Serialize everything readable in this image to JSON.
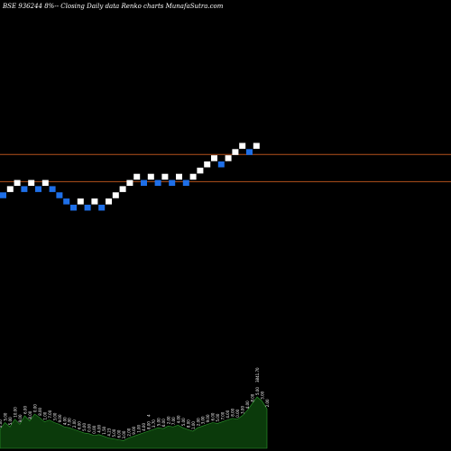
{
  "chart_data": {
    "type": "renko",
    "title": "BSE 936244  8%-- Closing Daily data  Renko  charts MunafaSutra.com",
    "colors": {
      "background": "#000000",
      "up_brick": "#ffffff",
      "down_brick": "#1e6fe8",
      "reference_line": "#b5521c",
      "volume_fill": "#0b3a0b",
      "volume_stroke": "#2e9c2e"
    },
    "bricks": [
      {
        "dir": "down",
        "level": 0
      },
      {
        "dir": "up",
        "level": 1
      },
      {
        "dir": "up",
        "level": 2
      },
      {
        "dir": "down",
        "level": 1
      },
      {
        "dir": "up",
        "level": 2
      },
      {
        "dir": "down",
        "level": 1
      },
      {
        "dir": "up",
        "level": 2
      },
      {
        "dir": "down",
        "level": 1
      },
      {
        "dir": "down",
        "level": 0
      },
      {
        "dir": "down",
        "level": -1
      },
      {
        "dir": "down",
        "level": -2
      },
      {
        "dir": "up",
        "level": -1
      },
      {
        "dir": "down",
        "level": -2
      },
      {
        "dir": "up",
        "level": -1
      },
      {
        "dir": "down",
        "level": -2
      },
      {
        "dir": "up",
        "level": -1
      },
      {
        "dir": "up",
        "level": 0
      },
      {
        "dir": "up",
        "level": 1
      },
      {
        "dir": "up",
        "level": 2
      },
      {
        "dir": "up",
        "level": 3
      },
      {
        "dir": "down",
        "level": 2
      },
      {
        "dir": "up",
        "level": 3
      },
      {
        "dir": "down",
        "level": 2
      },
      {
        "dir": "up",
        "level": 3
      },
      {
        "dir": "down",
        "level": 2
      },
      {
        "dir": "up",
        "level": 3
      },
      {
        "dir": "down",
        "level": 2
      },
      {
        "dir": "up",
        "level": 3
      },
      {
        "dir": "up",
        "level": 4
      },
      {
        "dir": "up",
        "level": 5
      },
      {
        "dir": "up",
        "level": 6
      },
      {
        "dir": "down",
        "level": 5
      },
      {
        "dir": "up",
        "level": 6
      },
      {
        "dir": "up",
        "level": 7
      },
      {
        "dir": "up",
        "level": 8
      },
      {
        "dir": "down",
        "level": 7
      },
      {
        "dir": "up",
        "level": 8
      }
    ],
    "reference_lines": [
      {
        "level": 6.6
      },
      {
        "level": 2.2
      }
    ],
    "volume": {
      "values": [
        22,
        30,
        25,
        34,
        28,
        38,
        32,
        40,
        36,
        31,
        33,
        30,
        28,
        25,
        24,
        22,
        20,
        18,
        17,
        15,
        16,
        14,
        12,
        11,
        10,
        9,
        12,
        14,
        16,
        18,
        20,
        22,
        24,
        23,
        26,
        25,
        27,
        24,
        22,
        20,
        24,
        26,
        28,
        30,
        29,
        31,
        33,
        35,
        34,
        38,
        44,
        52,
        60,
        55,
        46
      ],
      "labels": [
        "0.00",
        "5.00",
        "5.00",
        "10.00",
        "9.00",
        "6.00",
        "8.00",
        "0.00",
        "8.00",
        "1.00",
        "7.00",
        "3.00",
        "9.00",
        "4.00",
        "7.00",
        "2.00",
        "6.00",
        "5.00",
        "0.00",
        "0.00",
        "4.00",
        "1.50",
        "4.23",
        "5.00",
        "6.00",
        "3.00",
        "2.00",
        "9.00",
        "1.00",
        "4.00",
        "8.00",
        "3.70",
        "5.00",
        "6.00",
        "2.00",
        "7.00",
        "4.00",
        "5.00",
        "8.00",
        "1.00",
        "2.00",
        "3.00",
        "9.00",
        "6.00",
        "5.00",
        "7.00",
        "4.00",
        "8.00",
        "0.00",
        "3.00",
        "4.00",
        "8.00",
        "5.00",
        "3.00",
        "2.00"
      ],
      "annotations": [
        {
          "text": "4",
          "index": 30
        },
        {
          "text": "3841.70",
          "index": 52
        }
      ]
    }
  }
}
